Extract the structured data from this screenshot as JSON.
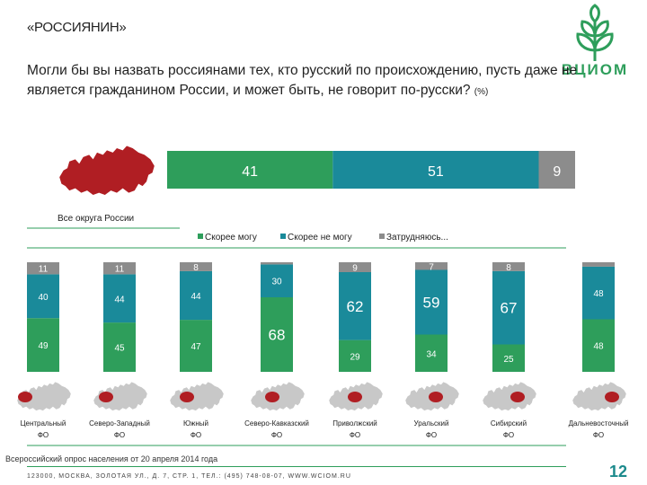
{
  "header": {
    "title": "«РОССИЯНИН»"
  },
  "question": {
    "text": "Могли бы вы назвать россиянами тех, кто русский по происхождению, пусть даже не является гражданином России, и может быть, не говорит по-русски?",
    "unit": "(%)"
  },
  "logo": {
    "text": "ВЦИОМ"
  },
  "colors": {
    "can": "#2e9e5b",
    "cannot": "#1a8a9a",
    "hard": "#8c8c8c",
    "map_base": "#c8c8c8",
    "map_highlight": "#b01e23",
    "accent": "#2e9e5b"
  },
  "chart_data": [
    {
      "type": "bar",
      "orientation": "horizontal-stacked",
      "category": "Все округа России",
      "series": [
        {
          "name": "Скорее могу",
          "value": 41
        },
        {
          "name": "Скорее не могу",
          "value": 51
        },
        {
          "name": "Затрудняюсь...",
          "value": 9
        }
      ]
    },
    {
      "type": "bar",
      "orientation": "vertical-stacked",
      "legend": [
        "Скорее могу",
        "Скорее не могу",
        "Затрудняюсь..."
      ],
      "categories": [
        "Центральный ФО",
        "Северо-Западный ФО",
        "Южный ФО",
        "Северо-Кавказский ФО",
        "Приволжский ФО",
        "Уральский ФО",
        "Сибирский ФО",
        "Дальневосточный ФО"
      ],
      "series": [
        {
          "name": "Скорее могу",
          "values": [
            49,
            45,
            47,
            68,
            29,
            34,
            25,
            48
          ]
        },
        {
          "name": "Скорее не могу",
          "values": [
            40,
            44,
            44,
            30,
            62,
            59,
            67,
            48
          ]
        },
        {
          "name": "Затрудняюсь...",
          "values": [
            11,
            11,
            8,
            2,
            9,
            7,
            8,
            4
          ]
        }
      ],
      "labels": {
        "Скорее могу": [
          "49",
          "45",
          "47",
          "68",
          "29",
          "34",
          "25",
          "48"
        ],
        "Скорее не могу": [
          "40",
          "44",
          "44",
          "30",
          "62",
          "59",
          "67",
          "48"
        ],
        "Затрудняюсь...": [
          "11",
          "11",
          "8",
          "",
          "9",
          "7",
          "8",
          ""
        ]
      }
    }
  ],
  "footer": {
    "note": "Всероссийский опрос населения от 20 апреля 2014 года",
    "address": "123000, МОСКВА, ЗОЛОТАЯ УЛ., Д. 7, СТР. 1, ТЕЛ.: (495) 748-08-07, WWW.WCIOM.RU"
  },
  "page_number": "12"
}
